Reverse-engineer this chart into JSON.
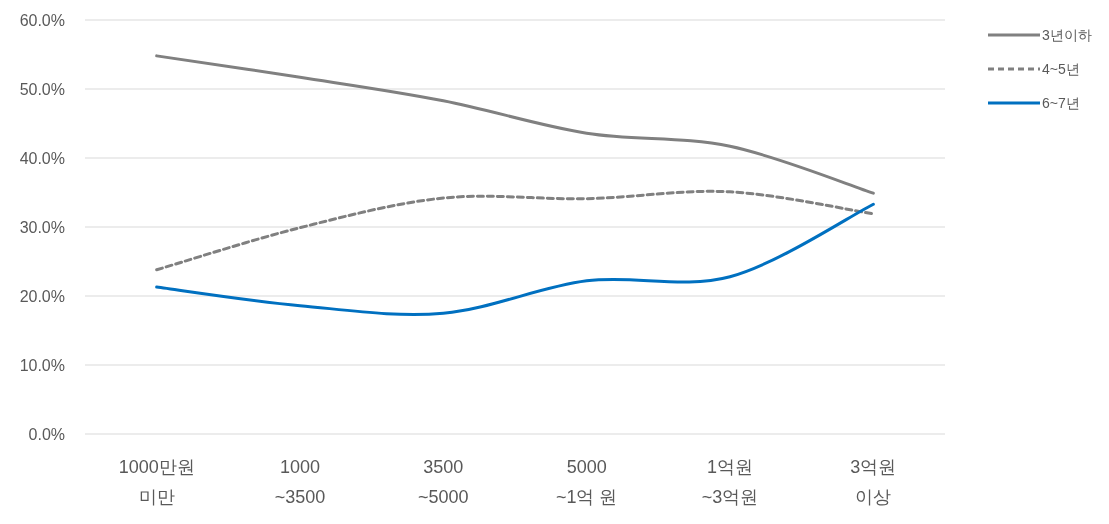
{
  "chart_data": {
    "type": "line",
    "categories": [
      "1000만원\n미만",
      "1000\n~3500",
      "3500\n~5000",
      "5000\n~1억 원",
      "1억원\n~3억원",
      "3억원\n이상"
    ],
    "series": [
      {
        "name": "3년이하",
        "color": "#808080",
        "line_style": "solid",
        "values": [
          54.8,
          51.7,
          48.3,
          43.6,
          41.7,
          34.9
        ]
      },
      {
        "name": "4~5년",
        "color": "#808080",
        "line_style": "dashed",
        "values": [
          23.8,
          29.9,
          34.2,
          34.1,
          35.1,
          31.9
        ]
      },
      {
        "name": "6~7년",
        "color": "#0070c0",
        "line_style": "solid",
        "values": [
          21.3,
          18.6,
          17.5,
          22.2,
          22.8,
          33.3
        ]
      }
    ],
    "ylim": [
      0,
      60
    ],
    "yticks": [
      {
        "value": 0,
        "label": "0.0%"
      },
      {
        "value": 10,
        "label": "10.0%"
      },
      {
        "value": 20,
        "label": "20.0%"
      },
      {
        "value": 30,
        "label": "30.0%"
      },
      {
        "value": 40,
        "label": "40.0%"
      },
      {
        "value": 50,
        "label": "50.0%"
      },
      {
        "value": 60,
        "label": "60.0%"
      }
    ],
    "grid": "y",
    "legend": "top right"
  }
}
